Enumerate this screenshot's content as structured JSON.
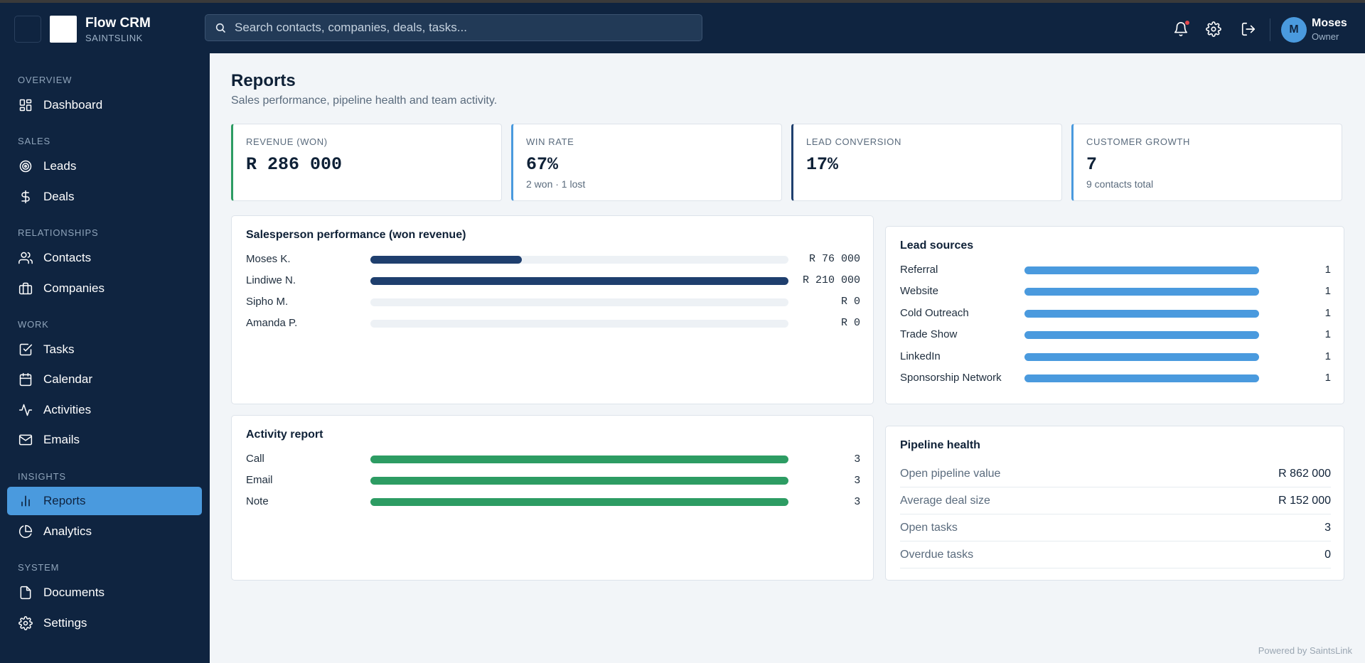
{
  "app": {
    "brand_name": "Flow CRM",
    "brand_sub": "SAINTSLINK",
    "search_placeholder": "Search contacts, companies, deals, tasks...",
    "user": {
      "name": "Moses",
      "role": "Owner",
      "initial": "M"
    }
  },
  "sidebar": {
    "sections": [
      {
        "label": "OVERVIEW",
        "items": [
          {
            "label": "Dashboard",
            "icon": "dashboard-icon"
          }
        ]
      },
      {
        "label": "SALES",
        "items": [
          {
            "label": "Leads",
            "icon": "target-icon"
          },
          {
            "label": "Deals",
            "icon": "dollar-icon"
          }
        ]
      },
      {
        "label": "RELATIONSHIPS",
        "items": [
          {
            "label": "Contacts",
            "icon": "users-icon"
          },
          {
            "label": "Companies",
            "icon": "briefcase-icon"
          }
        ]
      },
      {
        "label": "WORK",
        "items": [
          {
            "label": "Tasks",
            "icon": "checkbox-icon"
          },
          {
            "label": "Calendar",
            "icon": "calendar-icon"
          },
          {
            "label": "Activities",
            "icon": "activity-icon"
          },
          {
            "label": "Emails",
            "icon": "mail-icon"
          }
        ]
      },
      {
        "label": "INSIGHTS",
        "items": [
          {
            "label": "Reports",
            "icon": "bar-chart-icon",
            "active": true
          },
          {
            "label": "Analytics",
            "icon": "pie-chart-icon"
          }
        ]
      },
      {
        "label": "SYSTEM",
        "items": [
          {
            "label": "Documents",
            "icon": "file-icon"
          },
          {
            "label": "Settings",
            "icon": "gear-icon"
          }
        ]
      }
    ]
  },
  "page": {
    "title": "Reports",
    "subtitle": "Sales performance, pipeline health and team activity."
  },
  "kpis": [
    {
      "label": "REVENUE (WON)",
      "value": "R 286 000",
      "note": "",
      "accent": "#2d9c63"
    },
    {
      "label": "WIN RATE",
      "value": "67%",
      "note": "2 won · 1 lost",
      "accent": "#4a9ade"
    },
    {
      "label": "LEAD CONVERSION",
      "value": "17%",
      "note": "",
      "accent": "#1f3f6e"
    },
    {
      "label": "CUSTOMER GROWTH",
      "value": "7",
      "note": "9 contacts total",
      "accent": "#4a9ade"
    }
  ],
  "salesperson": {
    "title": "Salesperson performance (won revenue)",
    "color": "#1f3f6e",
    "max": 210000,
    "rows": [
      {
        "name": "Moses K.",
        "amount": 76000,
        "label": "R 76 000"
      },
      {
        "name": "Lindiwe N.",
        "amount": 210000,
        "label": "R 210 000"
      },
      {
        "name": "Sipho M.",
        "amount": 0,
        "label": "R 0"
      },
      {
        "name": "Amanda P.",
        "amount": 0,
        "label": "R 0"
      }
    ]
  },
  "lead_sources": {
    "title": "Lead sources",
    "color": "#4a9ade",
    "max": 1,
    "rows": [
      {
        "name": "Referral",
        "count": 1
      },
      {
        "name": "Website",
        "count": 1
      },
      {
        "name": "Cold Outreach",
        "count": 1
      },
      {
        "name": "Trade Show",
        "count": 1
      },
      {
        "name": "LinkedIn",
        "count": 1
      },
      {
        "name": "Sponsorship Network",
        "count": 1
      }
    ]
  },
  "activity_report": {
    "title": "Activity report",
    "color": "#2d9c63",
    "max": 3,
    "rows": [
      {
        "name": "Call",
        "count": 3
      },
      {
        "name": "Email",
        "count": 3
      },
      {
        "name": "Note",
        "count": 3
      }
    ]
  },
  "pipeline_health": {
    "title": "Pipeline health",
    "rows": [
      {
        "label": "Open pipeline value",
        "value": "R 862 000"
      },
      {
        "label": "Average deal size",
        "value": "R 152 000"
      },
      {
        "label": "Open tasks",
        "value": "3"
      },
      {
        "label": "Overdue tasks",
        "value": "0"
      }
    ]
  },
  "footer": {
    "powered": "Powered by SaintsLink"
  }
}
